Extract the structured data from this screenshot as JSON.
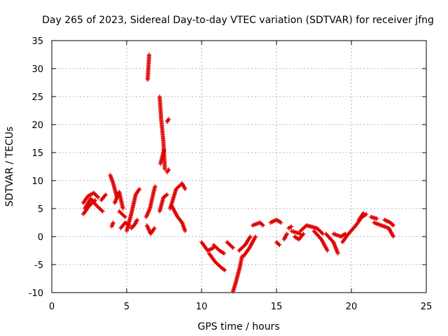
{
  "chart_data": {
    "type": "scatter",
    "title": "Day 265 of 2023, Sidereal Day-to-day VTEC variation (SDTVAR) for receiver jfng",
    "xlabel": "GPS time / hours",
    "ylabel": "SDTVAR / TECUs",
    "xlim": [
      0,
      25
    ],
    "ylim": [
      -10,
      35
    ],
    "xticks": [
      0,
      5,
      10,
      15,
      20,
      25
    ],
    "yticks": [
      -10,
      -5,
      0,
      5,
      10,
      15,
      20,
      25,
      30,
      35
    ],
    "grid": true,
    "marker": "+",
    "marker_color": "#e00000",
    "segments": [
      {
        "x": [
          2.1,
          2.4,
          2.8,
          3.1
        ],
        "y": [
          6.0,
          7.2,
          7.8,
          7.0
        ]
      },
      {
        "x": [
          2.1,
          2.5,
          2.9
        ],
        "y": [
          4.0,
          5.5,
          6.5
        ]
      },
      {
        "x": [
          2.2,
          2.6,
          3.0,
          3.4
        ],
        "y": [
          5.0,
          6.8,
          5.5,
          4.5
        ]
      },
      {
        "x": [
          3.3,
          3.6
        ],
        "y": [
          6.5,
          7.5
        ]
      },
      {
        "x": [
          3.9,
          4.1,
          4.35
        ],
        "y": [
          11.0,
          9.5,
          7.0
        ]
      },
      {
        "x": [
          4.0,
          4.1
        ],
        "y": [
          1.8,
          2.5
        ]
      },
      {
        "x": [
          4.2,
          4.5,
          4.75
        ],
        "y": [
          6.0,
          8.0,
          5.0
        ]
      },
      {
        "x": [
          4.5,
          4.9
        ],
        "y": [
          4.5,
          3.5
        ]
      },
      {
        "x": [
          4.6,
          4.9,
          5.2
        ],
        "y": [
          1.5,
          2.5,
          2.0
        ]
      },
      {
        "x": [
          5.0,
          5.3,
          5.6,
          5.85
        ],
        "y": [
          1.0,
          4.0,
          7.5,
          8.5
        ]
      },
      {
        "x": [
          5.3,
          5.5,
          5.7
        ],
        "y": [
          1.5,
          2.0,
          3.0
        ]
      },
      {
        "x": [
          6.4,
          6.5
        ],
        "y": [
          28.0,
          32.5
        ]
      },
      {
        "x": [
          6.3,
          6.55,
          6.8,
          6.9
        ],
        "y": [
          3.5,
          5.0,
          8.0,
          9.0
        ]
      },
      {
        "x": [
          6.35,
          6.6,
          6.85
        ],
        "y": [
          2.0,
          0.5,
          1.5
        ]
      },
      {
        "x": [
          7.2,
          7.3,
          7.45,
          7.55
        ],
        "y": [
          25.0,
          21.0,
          17.0,
          12.0
        ]
      },
      {
        "x": [
          7.25,
          7.5
        ],
        "y": [
          13.0,
          15.5
        ]
      },
      {
        "x": [
          7.7,
          7.8
        ],
        "y": [
          20.5,
          21.0
        ]
      },
      {
        "x": [
          7.7,
          7.8
        ],
        "y": [
          11.5,
          12.0
        ]
      },
      {
        "x": [
          7.2,
          7.45,
          7.7
        ],
        "y": [
          4.5,
          7.0,
          7.5
        ]
      },
      {
        "x": [
          7.9,
          8.3,
          8.7,
          8.9
        ],
        "y": [
          5.0,
          8.5,
          9.5,
          8.5
        ]
      },
      {
        "x": [
          8.0,
          8.4,
          8.7,
          8.9
        ],
        "y": [
          5.5,
          3.5,
          2.5,
          1.0
        ]
      },
      {
        "x": [
          10.0,
          10.4,
          10.8
        ],
        "y": [
          -1.0,
          -2.5,
          -2.0
        ]
      },
      {
        "x": [
          10.5,
          10.9,
          11.3,
          11.55
        ],
        "y": [
          -3.0,
          -4.5,
          -5.5,
          -6.0
        ]
      },
      {
        "x": [
          10.8,
          11.2,
          11.5
        ],
        "y": [
          -1.5,
          -2.5,
          -3.0
        ]
      },
      {
        "x": [
          11.7,
          12.1
        ],
        "y": [
          -1.0,
          -2.0
        ]
      },
      {
        "x": [
          12.1,
          12.25,
          12.55,
          12.7
        ],
        "y": [
          -9.8,
          -8.5,
          -5.5,
          -3.5
        ]
      },
      {
        "x": [
          12.5,
          12.9,
          13.25
        ],
        "y": [
          -2.5,
          -1.5,
          0.0
        ]
      },
      {
        "x": [
          12.8,
          13.2,
          13.6
        ],
        "y": [
          -3.5,
          -2.0,
          0.0
        ]
      },
      {
        "x": [
          13.4,
          13.9,
          14.1
        ],
        "y": [
          2.0,
          2.5,
          2.0
        ]
      },
      {
        "x": [
          14.6,
          15.0,
          15.3
        ],
        "y": [
          2.5,
          3.0,
          2.5
        ]
      },
      {
        "x": [
          15.0,
          15.2
        ],
        "y": [
          -1.0,
          -1.5
        ]
      },
      {
        "x": [
          15.5,
          15.7
        ],
        "y": [
          -0.5,
          0.5
        ]
      },
      {
        "x": [
          15.8,
          16.0
        ],
        "y": [
          1.5,
          1.8
        ]
      },
      {
        "x": [
          16.0,
          16.6
        ],
        "y": [
          1.0,
          0.5
        ]
      },
      {
        "x": [
          16.6,
          17.0,
          17.7,
          18.1
        ],
        "y": [
          1.0,
          2.0,
          1.5,
          0.5
        ]
      },
      {
        "x": [
          16.2,
          16.5,
          16.8
        ],
        "y": [
          0.0,
          -0.5,
          0.5
        ]
      },
      {
        "x": [
          17.5,
          18.0,
          18.4
        ],
        "y": [
          1.0,
          -0.5,
          -2.5
        ]
      },
      {
        "x": [
          18.3,
          18.8,
          19.1
        ],
        "y": [
          0.5,
          -1.0,
          -3.0
        ]
      },
      {
        "x": [
          18.8,
          19.3,
          19.6
        ],
        "y": [
          0.5,
          0.0,
          0.5
        ]
      },
      {
        "x": [
          19.4,
          19.8,
          20.3,
          20.7,
          21.0
        ],
        "y": [
          -1.0,
          0.5,
          2.0,
          3.5,
          4.0
        ]
      },
      {
        "x": [
          20.5,
          20.8
        ],
        "y": [
          3.0,
          4.2
        ]
      },
      {
        "x": [
          21.3,
          21.7
        ],
        "y": [
          3.5,
          3.2
        ]
      },
      {
        "x": [
          21.5,
          22.0,
          22.5,
          22.8
        ],
        "y": [
          2.5,
          2.0,
          1.5,
          0.0
        ]
      },
      {
        "x": [
          22.2,
          22.6,
          22.8
        ],
        "y": [
          3.0,
          2.5,
          2.0
        ]
      }
    ]
  }
}
